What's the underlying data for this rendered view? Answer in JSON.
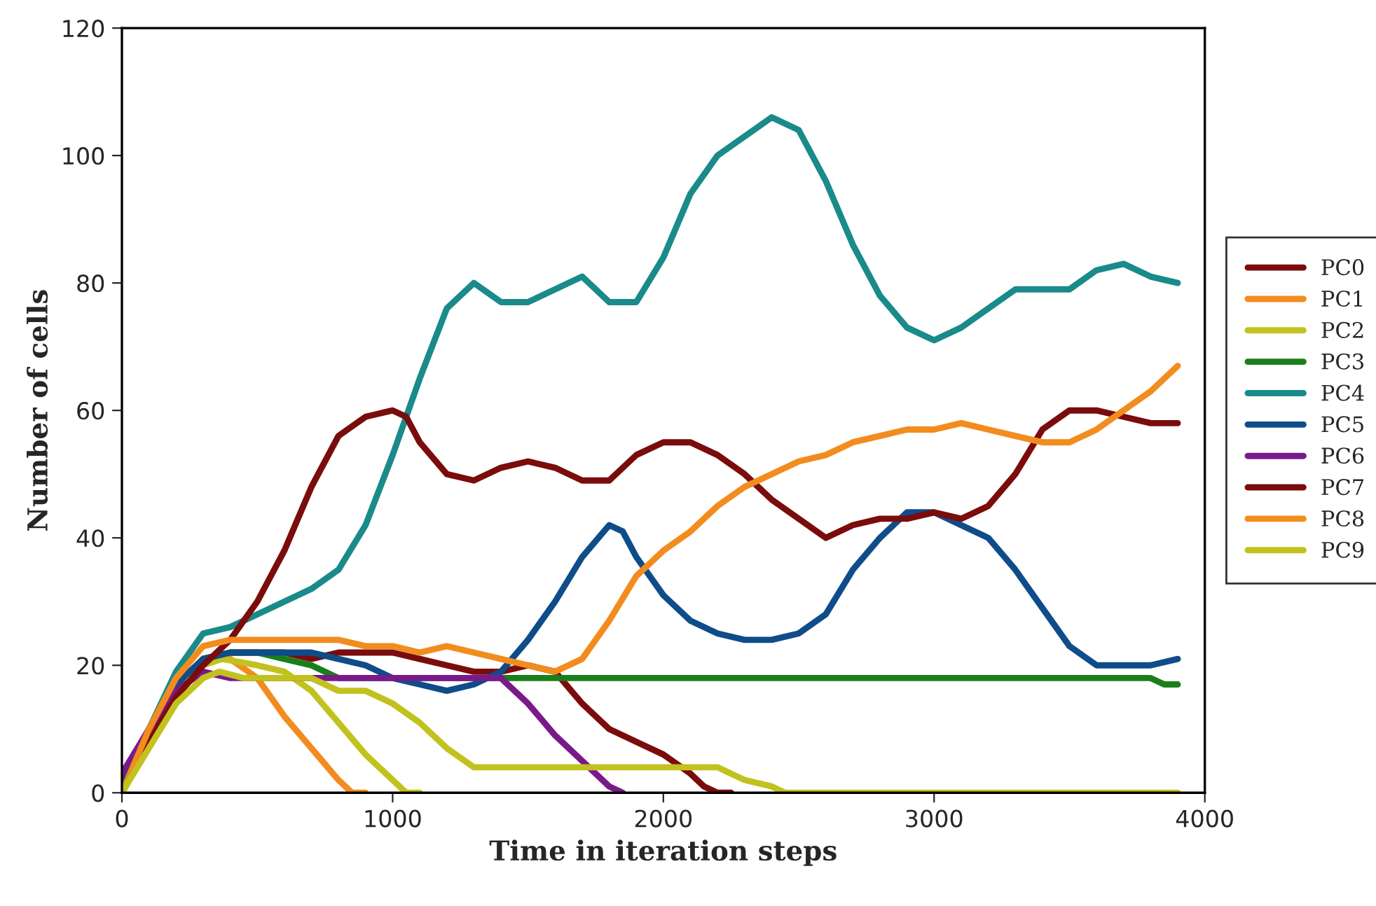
{
  "chart_data": {
    "type": "line",
    "xlabel": "Time in iteration steps",
    "ylabel": "Number of cells",
    "xlim": [
      0,
      4000
    ],
    "xticks": [
      0,
      1000,
      2000,
      3000,
      4000
    ],
    "ylim": [
      0,
      120
    ],
    "yticks": [
      0,
      20,
      40,
      60,
      80,
      100,
      120
    ],
    "grid": false,
    "legend": "right",
    "marker": "none",
    "line_style": "solid",
    "series": [
      {
        "name": "PC0",
        "color": "#7b0c0c",
        "x": [
          0,
          100,
          200,
          300,
          400,
          500,
          600,
          700,
          800,
          900,
          1000,
          1100,
          1200,
          1300,
          1400,
          1500,
          1600,
          1700,
          1800,
          1900,
          2000,
          2100,
          2150,
          2200,
          2250
        ],
        "values": [
          0,
          8,
          16,
          21,
          22,
          22,
          22,
          21,
          22,
          22,
          22,
          21,
          20,
          19,
          19,
          20,
          19,
          14,
          10,
          8,
          6,
          3,
          1,
          0,
          0
        ]
      },
      {
        "name": "PC1",
        "color": "#f28c1e",
        "x": [
          0,
          100,
          200,
          300,
          400,
          500,
          600,
          700,
          800,
          850,
          900
        ],
        "values": [
          0,
          8,
          16,
          21,
          21,
          18,
          12,
          7,
          2,
          0,
          0
        ]
      },
      {
        "name": "PC2",
        "color": "#c2c21e",
        "x": [
          0,
          100,
          200,
          300,
          370,
          500,
          600,
          700,
          800,
          900,
          1000,
          1050,
          1100
        ],
        "values": [
          0,
          8,
          16,
          20,
          21,
          20,
          19,
          16,
          11,
          6,
          2,
          0,
          0
        ]
      },
      {
        "name": "PC3",
        "color": "#1a7f1a",
        "x": [
          0,
          100,
          200,
          300,
          400,
          500,
          600,
          700,
          800,
          1000,
          2000,
          3000,
          3800,
          3850,
          3900
        ],
        "values": [
          1,
          10,
          17,
          21,
          22,
          22,
          21,
          20,
          18,
          18,
          18,
          18,
          18,
          17,
          17
        ]
      },
      {
        "name": "PC4",
        "color": "#1a8a8a",
        "x": [
          0,
          100,
          200,
          300,
          400,
          500,
          600,
          700,
          800,
          900,
          1000,
          1100,
          1200,
          1300,
          1400,
          1500,
          1600,
          1700,
          1800,
          1900,
          2000,
          2100,
          2200,
          2300,
          2400,
          2500,
          2600,
          2700,
          2800,
          2900,
          3000,
          3100,
          3200,
          3300,
          3400,
          3500,
          3600,
          3700,
          3800,
          3900
        ],
        "values": [
          2,
          10,
          19,
          25,
          26,
          28,
          30,
          32,
          35,
          42,
          53,
          65,
          76,
          80,
          77,
          77,
          79,
          81,
          77,
          77,
          84,
          94,
          100,
          103,
          106,
          104,
          96,
          86,
          78,
          73,
          71,
          73,
          76,
          79,
          79,
          79,
          82,
          83,
          81,
          80
        ]
      },
      {
        "name": "PC5",
        "color": "#0f4c8a",
        "x": [
          0,
          100,
          200,
          300,
          400,
          500,
          600,
          700,
          800,
          900,
          1000,
          1100,
          1200,
          1300,
          1400,
          1500,
          1600,
          1700,
          1800,
          1850,
          1900,
          2000,
          2100,
          2200,
          2300,
          2400,
          2500,
          2600,
          2700,
          2800,
          2900,
          3000,
          3100,
          3200,
          3300,
          3400,
          3500,
          3600,
          3700,
          3800,
          3900
        ],
        "values": [
          2,
          10,
          17,
          21,
          22,
          22,
          22,
          22,
          21,
          20,
          18,
          17,
          16,
          17,
          19,
          24,
          30,
          37,
          42,
          41,
          37,
          31,
          27,
          25,
          24,
          24,
          25,
          28,
          35,
          40,
          44,
          44,
          42,
          40,
          35,
          29,
          23,
          20,
          20,
          20,
          21
        ]
      },
      {
        "name": "PC6",
        "color": "#7a1a8a",
        "x": [
          0,
          100,
          200,
          300,
          400,
          800,
          1000,
          1200,
          1400,
          1500,
          1600,
          1700,
          1800,
          1850
        ],
        "values": [
          3,
          10,
          16,
          19,
          18,
          18,
          18,
          18,
          18,
          14,
          9,
          5,
          1,
          0
        ]
      },
      {
        "name": "PC7",
        "color": "#7b0c0c",
        "x": [
          0,
          100,
          200,
          300,
          400,
          500,
          600,
          700,
          800,
          900,
          1000,
          1050,
          1100,
          1200,
          1300,
          1400,
          1500,
          1600,
          1700,
          1800,
          1900,
          2000,
          2100,
          2200,
          2300,
          2400,
          2500,
          2600,
          2700,
          2800,
          2900,
          3000,
          3100,
          3200,
          3300,
          3400,
          3500,
          3600,
          3700,
          3800,
          3900
        ],
        "values": [
          0,
          8,
          15,
          20,
          24,
          30,
          38,
          48,
          56,
          59,
          60,
          59,
          55,
          50,
          49,
          51,
          52,
          51,
          49,
          49,
          53,
          55,
          55,
          53,
          50,
          46,
          43,
          40,
          42,
          43,
          43,
          44,
          43,
          45,
          50,
          57,
          60,
          60,
          59,
          58,
          58
        ]
      },
      {
        "name": "PC8",
        "color": "#f28c1e",
        "x": [
          0,
          100,
          200,
          300,
          400,
          500,
          600,
          700,
          800,
          900,
          1000,
          1100,
          1200,
          1300,
          1400,
          1500,
          1600,
          1700,
          1800,
          1900,
          2000,
          2100,
          2200,
          2300,
          2400,
          2500,
          2600,
          2700,
          2800,
          2900,
          3000,
          3100,
          3200,
          3300,
          3400,
          3500,
          3600,
          3700,
          3800,
          3900
        ],
        "values": [
          0,
          10,
          18,
          23,
          24,
          24,
          24,
          24,
          24,
          23,
          23,
          22,
          23,
          22,
          21,
          20,
          19,
          21,
          27,
          34,
          38,
          41,
          45,
          48,
          50,
          52,
          53,
          55,
          56,
          57,
          57,
          58,
          57,
          56,
          55,
          55,
          57,
          60,
          63,
          67
        ]
      },
      {
        "name": "PC9",
        "color": "#c2c21e",
        "x": [
          0,
          100,
          200,
          300,
          360,
          450,
          700,
          800,
          900,
          1000,
          1100,
          1200,
          1300,
          1600,
          2000,
          2200,
          2250,
          2300,
          2400,
          2450,
          3000,
          3900
        ],
        "values": [
          0,
          7,
          14,
          18,
          19,
          18,
          18,
          16,
          16,
          14,
          11,
          7,
          4,
          4,
          4,
          4,
          3,
          2,
          1,
          0,
          0,
          0
        ]
      }
    ]
  }
}
